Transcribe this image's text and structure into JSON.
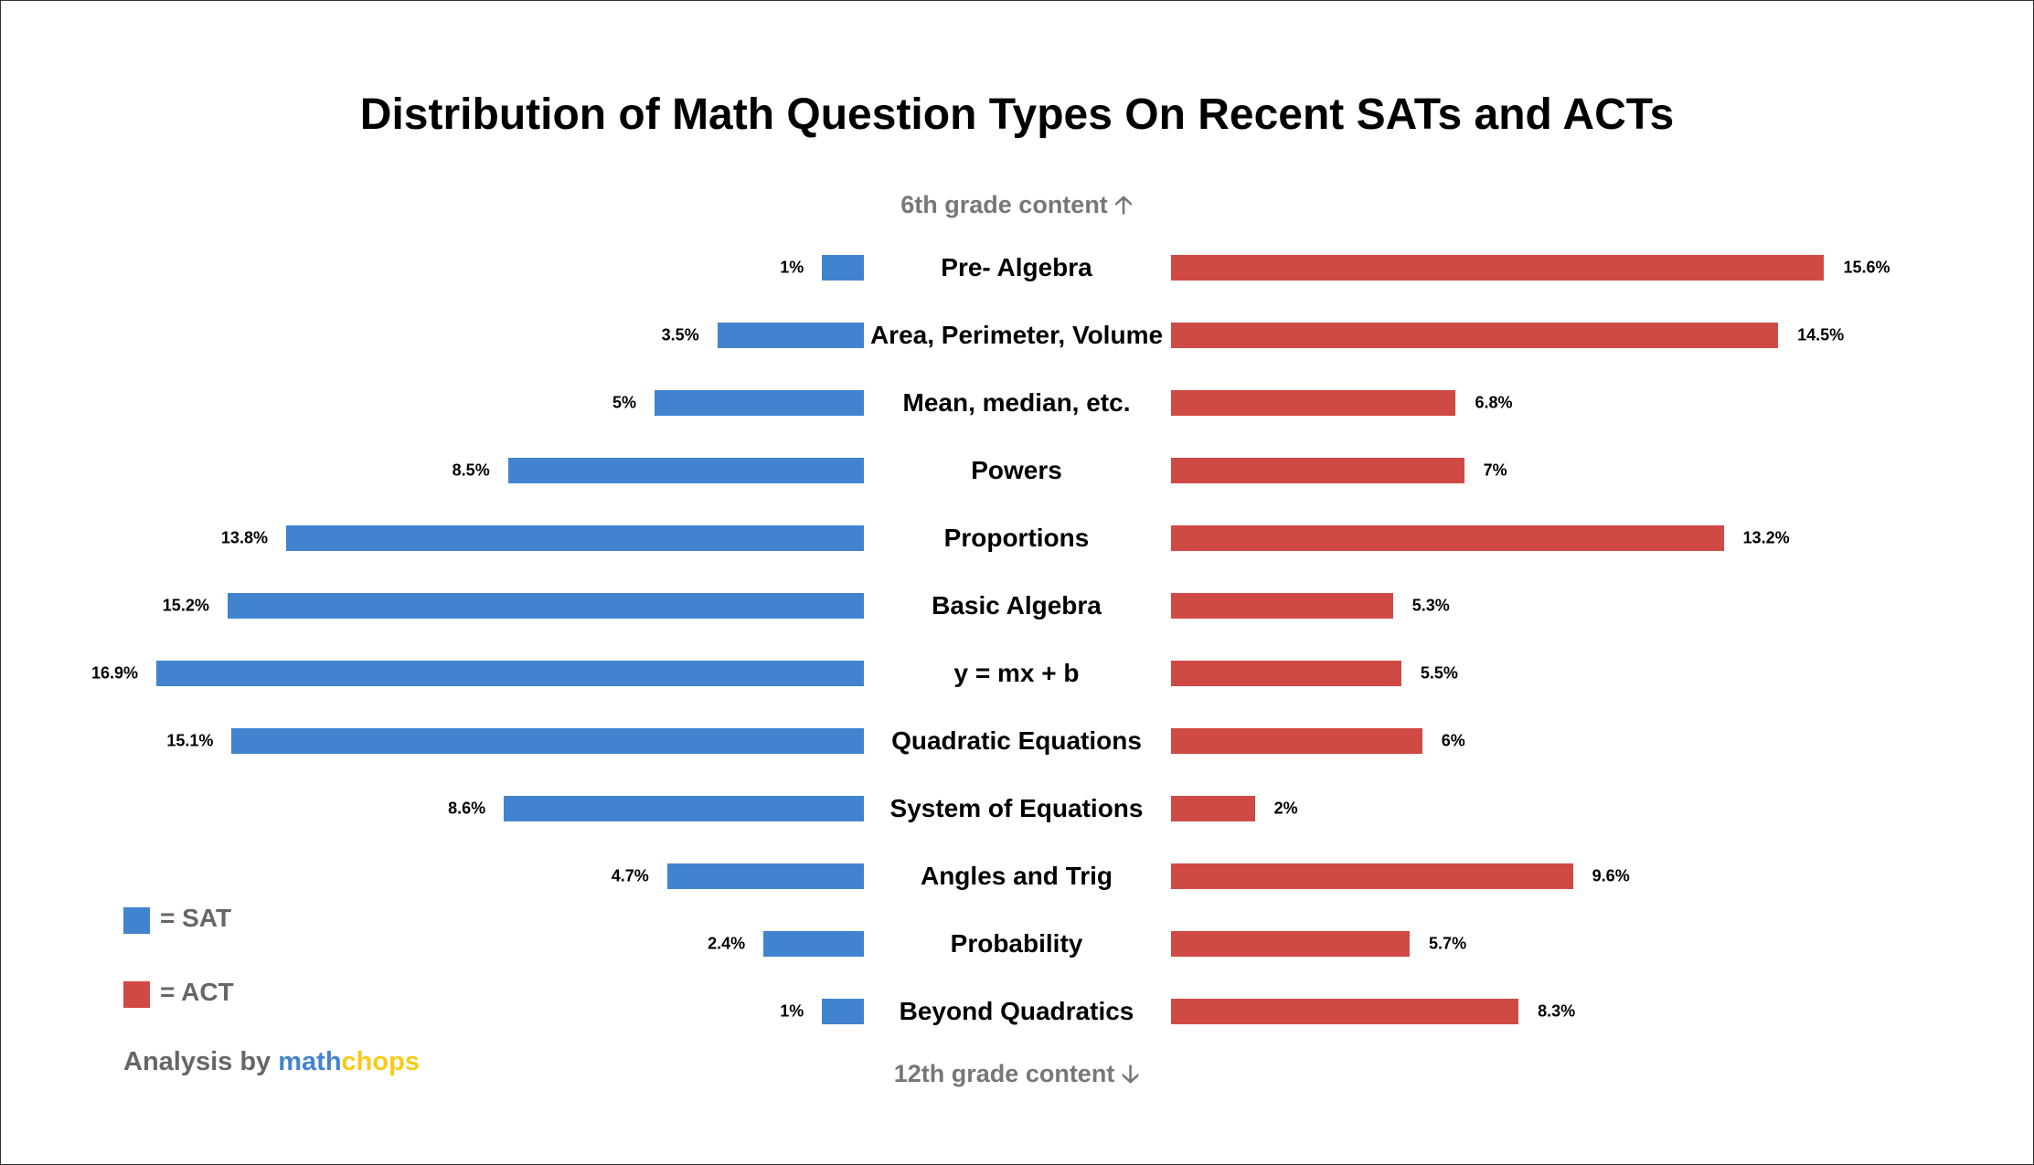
{
  "chart_data": {
    "type": "bar",
    "orientation": "horizontal-butterfly",
    "title": "Distribution of Math Question Types On Recent SATs and ACTs",
    "top_note": "6th grade content",
    "bottom_note": "12th grade content",
    "categories": [
      "Pre- Algebra",
      "Area, Perimeter, Volume",
      "Mean, median, etc.",
      "Powers",
      "Proportions",
      "Basic Algebra",
      "y = mx + b",
      "Quadratic Equations",
      "System of Equations",
      "Angles and Trig",
      "Probability",
      "Beyond Quadratics"
    ],
    "series": [
      {
        "name": "SAT",
        "color": "#4283D0",
        "side": "left",
        "values": [
          1,
          3.5,
          5,
          8.5,
          13.8,
          15.2,
          16.9,
          15.1,
          8.6,
          4.7,
          2.4,
          1
        ],
        "labels": [
          "1%",
          "3.5%",
          "5%",
          "8.5%",
          "13.8%",
          "15.2%",
          "16.9%",
          "15.1%",
          "8.6%",
          "4.7%",
          "2.4%",
          "1%"
        ]
      },
      {
        "name": "ACT",
        "color": "#CF4A45",
        "side": "right",
        "values": [
          15.6,
          14.5,
          6.8,
          7,
          13.2,
          5.3,
          5.5,
          6,
          2,
          9.6,
          5.7,
          8.3
        ],
        "labels": [
          "15.6%",
          "14.5%",
          "6.8%",
          "7%",
          "13.2%",
          "5.3%",
          "5.5%",
          "6%",
          "2%",
          "9.6%",
          "5.7%",
          "8.3%"
        ]
      }
    ],
    "unit": "%",
    "grid": false,
    "legend_placement": "bottom-left",
    "legend": {
      "sat": "= SAT",
      "act": "= ACT"
    }
  },
  "credit": {
    "prefix": "Analysis by ",
    "brand_a": "math",
    "brand_b": "chops",
    "brand_a_color": "#4283D0",
    "brand_b_color": "#F6CB17"
  }
}
